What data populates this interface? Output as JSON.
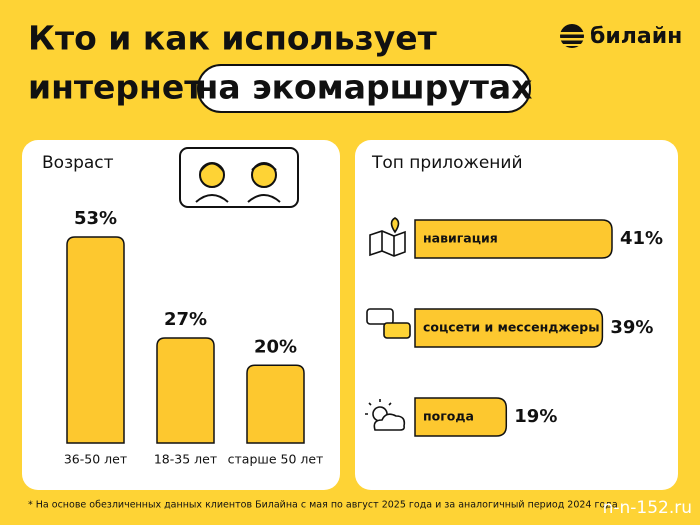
{
  "header": {
    "title_line1": "Кто и как использует",
    "title_line2": "интернет",
    "title_highlight": "на экомаршрутах",
    "brand": "билайн"
  },
  "chart_data": [
    {
      "type": "bar",
      "title": "Возраст",
      "categories": [
        "36-50 лет",
        "18-35 лет",
        "старше 50 лет"
      ],
      "values": [
        53,
        27,
        20
      ],
      "value_labels": [
        "53%",
        "27%",
        "20%"
      ],
      "color": "#fdc82f"
    },
    {
      "type": "hbar",
      "title": "Топ приложений",
      "categories": [
        "навигация",
        "соцсети и мессенджеры",
        "погода"
      ],
      "values": [
        41,
        39,
        19
      ],
      "value_labels": [
        "41%",
        "39%",
        "19%"
      ],
      "color": "#fdc82f"
    }
  ],
  "footnote": "* На основе обезличенных данных клиентов Билайна с мая по август 2025 года и за аналогичный период 2024 года",
  "watermark": "n-n-152.ru"
}
